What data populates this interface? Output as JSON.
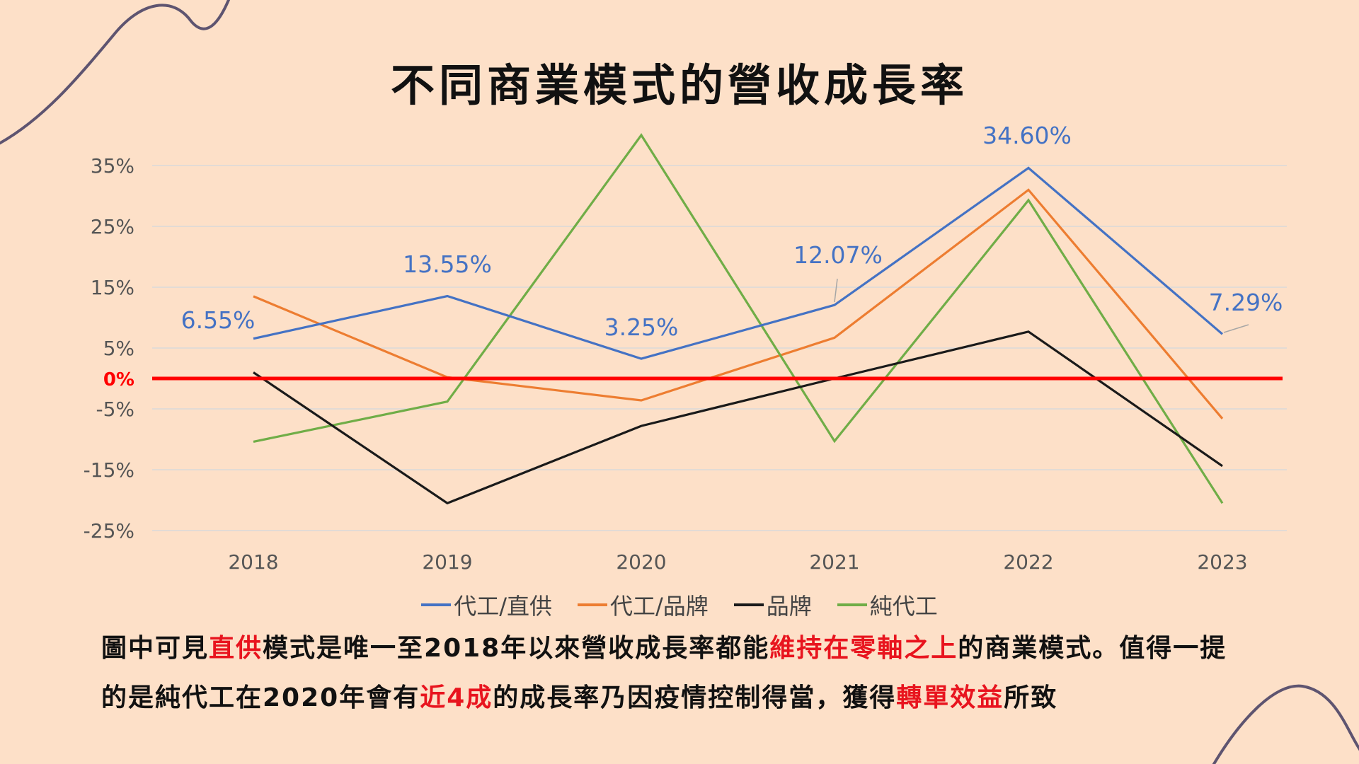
{
  "title": "不同商業模式的營收成長率",
  "chart_data": {
    "type": "line",
    "title": "不同商業模式的營收成長率",
    "x": [
      "2018",
      "2019",
      "2020",
      "2021",
      "2022",
      "2023"
    ],
    "ylim": [
      -25,
      35
    ],
    "y_ticks": [
      "35%",
      "25%",
      "15%",
      "5%",
      "-5%",
      "-15%",
      "-25%"
    ],
    "zero_label": "0%",
    "grid": true,
    "legend_position": "bottom",
    "series": [
      {
        "name": "代工/直供",
        "color": "#4472C4",
        "values": [
          6.55,
          13.55,
          3.25,
          12.07,
          34.6,
          7.29
        ],
        "data_labels": [
          "6.55%",
          "13.55%",
          "3.25%",
          "12.07%",
          "34.60%",
          "7.29%"
        ]
      },
      {
        "name": "代工/品牌",
        "color": "#ED7D31",
        "values": [
          13.5,
          0.2,
          -3.6,
          6.7,
          31,
          -6.6
        ]
      },
      {
        "name": "品牌",
        "color": "#1A1A1A",
        "values": [
          1,
          -20.5,
          -7.8,
          0,
          7.7,
          -14.4
        ]
      },
      {
        "name": "純代工",
        "color": "#70AD47",
        "values": [
          -10.4,
          -3.8,
          40,
          -10.3,
          29.3,
          -20.5
        ]
      }
    ],
    "zero_line_color": "#FF0000"
  },
  "caption": {
    "segments": [
      {
        "text": "圖中可見",
        "hl": false
      },
      {
        "text": "直供",
        "hl": true
      },
      {
        "text": "模式是唯一至2018年以來營收成長率都能",
        "hl": false
      },
      {
        "text": "維持在零軸之上",
        "hl": true
      },
      {
        "text": "的商業模式。值得一提的是純代工在2020年會有",
        "hl": false
      },
      {
        "text": "近4成",
        "hl": true
      },
      {
        "text": "的成長率乃因疫情控制得當，獲得",
        "hl": false
      },
      {
        "text": "轉單效益",
        "hl": true
      },
      {
        "text": "所致",
        "hl": false
      }
    ]
  },
  "colors": {
    "background": "#FDE0C8",
    "highlight": "#E8141E",
    "decoration": "#5E5470"
  }
}
